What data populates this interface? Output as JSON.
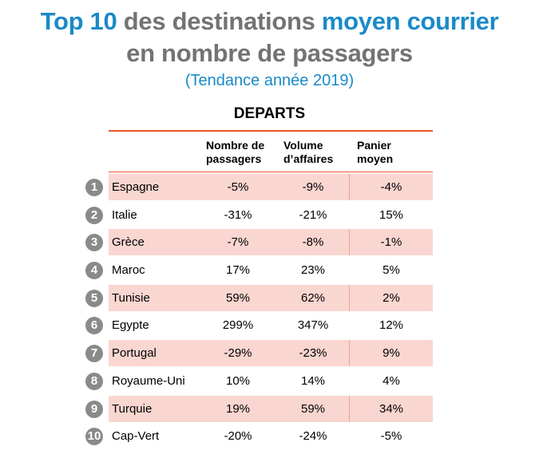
{
  "title": {
    "line1": [
      "Top 10",
      " des destinations ",
      "moyen courrier"
    ],
    "line2": "en nombre de passagers",
    "subtitle": "(Tendance année 2019)"
  },
  "colors": {
    "blue": "#1a8ac8",
    "grey": "#737373",
    "accent": "#e8552c",
    "row_shade": "#fad6d0",
    "badge": "#8a8a8a"
  },
  "chart_data": {
    "type": "table",
    "title": "DEPARTS",
    "columns": [
      [
        "Nombre de",
        "passagers"
      ],
      [
        "Volume",
        "d’affaires"
      ],
      [
        "Panier",
        "moyen"
      ]
    ],
    "rows": [
      {
        "rank": "1",
        "country": "Espagne",
        "values": [
          "-5%",
          "-9%",
          "-4%"
        ]
      },
      {
        "rank": "2",
        "country": "Italie",
        "values": [
          "-31%",
          "-21%",
          "15%"
        ]
      },
      {
        "rank": "3",
        "country": "Grèce",
        "values": [
          "-7%",
          "-8%",
          "-1%"
        ]
      },
      {
        "rank": "4",
        "country": "Maroc",
        "values": [
          "17%",
          "23%",
          "5%"
        ]
      },
      {
        "rank": "5",
        "country": "Tunisie",
        "values": [
          "59%",
          "62%",
          "2%"
        ]
      },
      {
        "rank": "6",
        "country": "Egypte",
        "values": [
          "299%",
          "347%",
          "12%"
        ]
      },
      {
        "rank": "7",
        "country": "Portugal",
        "values": [
          "-29%",
          "-23%",
          "9%"
        ]
      },
      {
        "rank": "8",
        "country": "Royaume-Uni",
        "values": [
          "10%",
          "14%",
          "4%"
        ]
      },
      {
        "rank": "9",
        "country": "Turquie",
        "values": [
          "19%",
          "59%",
          "34%"
        ]
      },
      {
        "rank": "10",
        "country": "Cap-Vert",
        "values": [
          "-20%",
          "-24%",
          "-5%"
        ]
      }
    ]
  }
}
